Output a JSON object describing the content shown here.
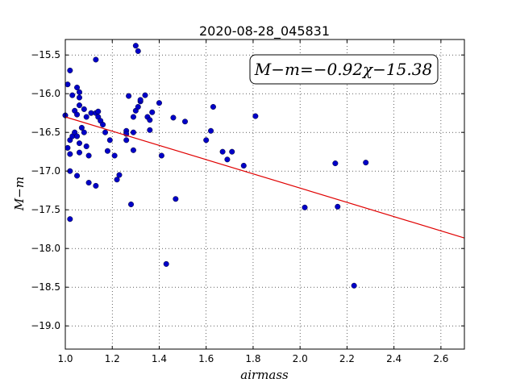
{
  "chart_data": {
    "type": "scatter",
    "title": "2020-08-28_045831",
    "xlabel": "airmass",
    "ylabel": "M−m",
    "xlim": [
      1.0,
      2.7
    ],
    "ylim": [
      -19.3,
      -15.3
    ],
    "y_inverted": true,
    "grid": true,
    "x_ticks": [
      1.0,
      1.2,
      1.4,
      1.6,
      1.8,
      2.0,
      2.2,
      2.4,
      2.6
    ],
    "x_tick_labels": [
      "1.0",
      "1.2",
      "1.4",
      "1.6",
      "1.8",
      "2.0",
      "2.2",
      "2.4",
      "2.6"
    ],
    "y_ticks": [
      -15.5,
      -16.0,
      -16.5,
      -17.0,
      -17.5,
      -18.0,
      -18.5,
      -19.0
    ],
    "y_tick_labels": [
      "−15.5",
      "−16.0",
      "−16.5",
      "−17.0",
      "−17.5",
      "−18.0",
      "−18.5",
      "−19.0"
    ],
    "annotation": "M−m=−0.92χ−15.38",
    "annotation_position": "top-right",
    "fit": {
      "slope": -0.92,
      "intercept": -15.38,
      "color": "#e00000"
    },
    "point_color": "#0000c8",
    "points": [
      [
        1.0,
        -16.28
      ],
      [
        1.01,
        -16.7
      ],
      [
        1.01,
        -15.88
      ],
      [
        1.02,
        -15.7
      ],
      [
        1.02,
        -16.6
      ],
      [
        1.02,
        -16.78
      ],
      [
        1.02,
        -17.0
      ],
      [
        1.02,
        -17.62
      ],
      [
        1.03,
        -16.55
      ],
      [
        1.03,
        -16.02
      ],
      [
        1.04,
        -16.22
      ],
      [
        1.04,
        -16.5
      ],
      [
        1.05,
        -15.92
      ],
      [
        1.05,
        -16.27
      ],
      [
        1.05,
        -16.55
      ],
      [
        1.05,
        -17.06
      ],
      [
        1.06,
        -16.15
      ],
      [
        1.06,
        -16.05
      ],
      [
        1.06,
        -16.64
      ],
      [
        1.06,
        -16.76
      ],
      [
        1.06,
        -15.98
      ],
      [
        1.07,
        -16.44
      ],
      [
        1.08,
        -16.2
      ],
      [
        1.08,
        -16.5
      ],
      [
        1.09,
        -16.68
      ],
      [
        1.09,
        -16.3
      ],
      [
        1.1,
        -16.8
      ],
      [
        1.1,
        -17.15
      ],
      [
        1.11,
        -16.25
      ],
      [
        1.13,
        -17.19
      ],
      [
        1.13,
        -15.56
      ],
      [
        1.13,
        -16.25
      ],
      [
        1.14,
        -16.23
      ],
      [
        1.14,
        -16.3
      ],
      [
        1.15,
        -16.35
      ],
      [
        1.16,
        -16.4
      ],
      [
        1.17,
        -16.5
      ],
      [
        1.18,
        -16.74
      ],
      [
        1.19,
        -16.6
      ],
      [
        1.21,
        -16.8
      ],
      [
        1.22,
        -17.11
      ],
      [
        1.23,
        -17.05
      ],
      [
        1.26,
        -16.48
      ],
      [
        1.26,
        -16.52
      ],
      [
        1.26,
        -16.6
      ],
      [
        1.27,
        -16.03
      ],
      [
        1.28,
        -17.43
      ],
      [
        1.29,
        -16.73
      ],
      [
        1.29,
        -16.5
      ],
      [
        1.29,
        -16.3
      ],
      [
        1.3,
        -16.22
      ],
      [
        1.3,
        -15.38
      ],
      [
        1.31,
        -15.45
      ],
      [
        1.31,
        -16.17
      ],
      [
        1.32,
        -16.1
      ],
      [
        1.32,
        -16.08
      ],
      [
        1.34,
        -16.02
      ],
      [
        1.35,
        -16.3
      ],
      [
        1.36,
        -16.34
      ],
      [
        1.36,
        -16.47
      ],
      [
        1.37,
        -16.24
      ],
      [
        1.4,
        -16.12
      ],
      [
        1.41,
        -16.8
      ],
      [
        1.43,
        -18.2
      ],
      [
        1.46,
        -16.31
      ],
      [
        1.47,
        -17.36
      ],
      [
        1.51,
        -16.36
      ],
      [
        1.6,
        -16.6
      ],
      [
        1.62,
        -16.48
      ],
      [
        1.63,
        -16.17
      ],
      [
        1.67,
        -16.75
      ],
      [
        1.69,
        -16.85
      ],
      [
        1.71,
        -16.75
      ],
      [
        1.76,
        -16.93
      ],
      [
        1.81,
        -16.29
      ],
      [
        2.02,
        -17.47
      ],
      [
        2.15,
        -16.9
      ],
      [
        2.16,
        -17.46
      ],
      [
        2.23,
        -18.48
      ],
      [
        2.28,
        -16.89
      ]
    ]
  }
}
